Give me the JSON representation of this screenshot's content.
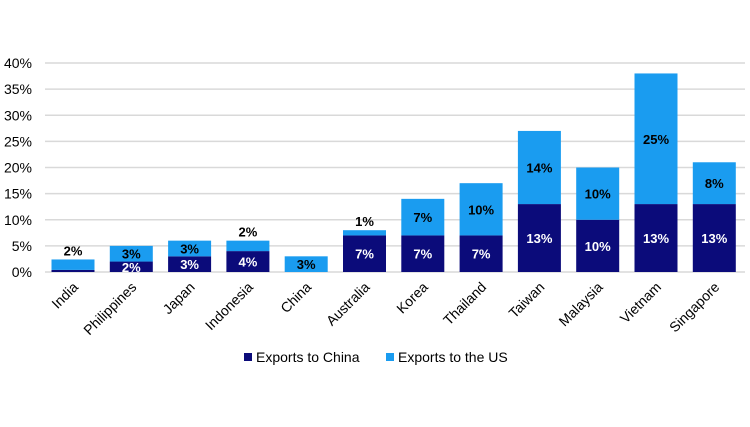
{
  "chart_data": {
    "type": "bar",
    "stacked": true,
    "categories": [
      "India",
      "Philippines",
      "Japan",
      "Indonesia",
      "China",
      "Australia",
      "Korea",
      "Thailand",
      "Taiwan",
      "Malaysia",
      "Vietnam",
      "Singapore"
    ],
    "series": [
      {
        "name": "Exports to China",
        "color": "#0b0b7a",
        "values": [
          0.4,
          2,
          3,
          4,
          0,
          7,
          7,
          7,
          13,
          10,
          13,
          13
        ],
        "labels": [
          "",
          "2%",
          "3%",
          "4%",
          "",
          "7%",
          "7%",
          "7%",
          "13%",
          "10%",
          "13%",
          "13%"
        ]
      },
      {
        "name": "Exports to the US",
        "color": "#1a9cf0",
        "values": [
          2,
          3,
          3,
          2,
          3,
          1,
          7,
          10,
          14,
          10,
          25,
          8
        ],
        "labels": [
          "2%",
          "3%",
          "3%",
          "2%",
          "3%",
          "1%",
          "7%",
          "10%",
          "14%",
          "10%",
          "25%",
          "8%"
        ]
      }
    ],
    "yticks": [
      "0%",
      "5%",
      "10%",
      "15%",
      "20%",
      "25%",
      "30%",
      "35%",
      "40%"
    ],
    "ylim": [
      0,
      40
    ],
    "grid": true,
    "legend_position": "bottom",
    "title": "",
    "xlabel": "",
    "ylabel": ""
  }
}
